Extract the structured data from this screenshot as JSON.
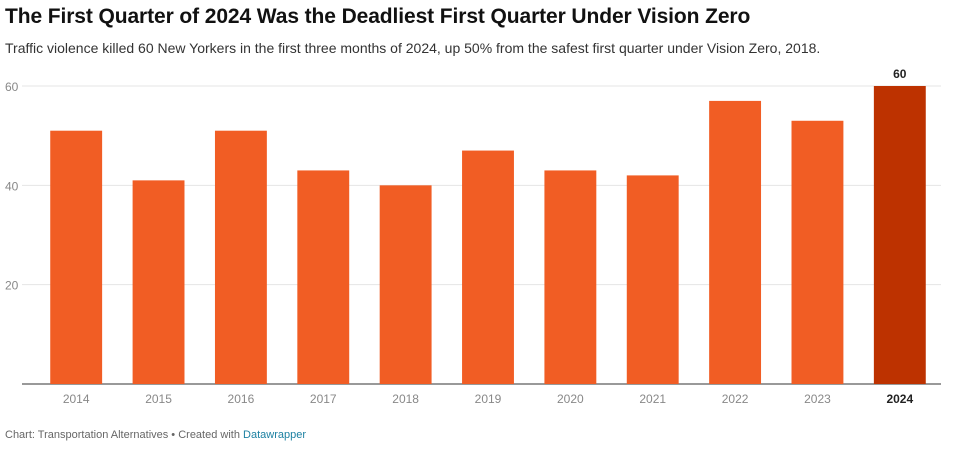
{
  "title": "The First Quarter of 2024 Was the Deadliest First Quarter Under Vision Zero",
  "subtitle": "Traffic violence killed 60 New Yorkers in the first three months of 2024, up 50% from the safest first quarter under Vision Zero, 2018.",
  "footer": {
    "source": "Chart: Transportation Alternatives • Created with ",
    "tool_link": "Datawrapper"
  },
  "colors": {
    "bar": "#f15d24",
    "highlight": "#bd3200",
    "grid": "#e5e5e5",
    "axis_text": "#888888"
  },
  "chart_data": {
    "type": "bar",
    "categories": [
      "2014",
      "2015",
      "2016",
      "2017",
      "2018",
      "2019",
      "2020",
      "2021",
      "2022",
      "2023",
      "2024"
    ],
    "values": [
      51,
      41,
      51,
      43,
      40,
      47,
      43,
      42,
      57,
      53,
      60
    ],
    "yticks": [
      20,
      40,
      60
    ],
    "ylim": [
      0,
      60
    ],
    "highlight_category": "2024",
    "data_labels": {
      "2024": "60"
    },
    "grid": true
  }
}
